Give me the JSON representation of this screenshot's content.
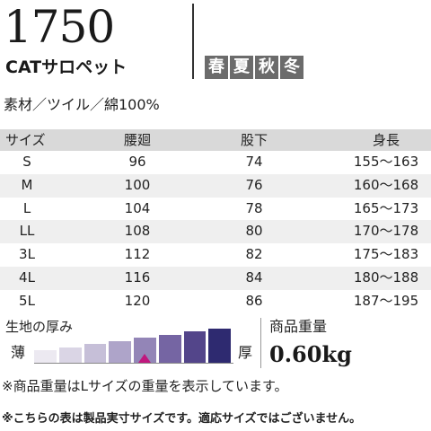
{
  "product": {
    "number": "1750",
    "name": "CATサロペット",
    "seasons": [
      "春",
      "夏",
      "秋",
      "冬"
    ]
  },
  "material": "素材／ツイル／綿100%",
  "size_table": {
    "headers": [
      "サイズ",
      "腰廻",
      "股下",
      "身長"
    ],
    "rows": [
      [
        "S",
        "96",
        "74",
        "155〜163"
      ],
      [
        "M",
        "100",
        "76",
        "160〜168"
      ],
      [
        "L",
        "104",
        "78",
        "165〜173"
      ],
      [
        "LL",
        "108",
        "80",
        "170〜178"
      ],
      [
        "3L",
        "112",
        "82",
        "175〜183"
      ],
      [
        "4L",
        "116",
        "84",
        "180〜188"
      ],
      [
        "5L",
        "120",
        "86",
        "187〜195"
      ]
    ]
  },
  "thickness": {
    "title": "生地の厚み",
    "thin_label": "薄",
    "thick_label": "厚",
    "levels": 8,
    "selected_level": 5,
    "colors": [
      "#ece9f1",
      "#dad5e5",
      "#c6bfd8",
      "#aea4c9",
      "#9385b7",
      "#7565a3",
      "#53458a",
      "#2e2a70"
    ],
    "marker_color": "#c0187e"
  },
  "weight": {
    "title": "商品重量",
    "value": "0.60kg"
  },
  "footnotes": {
    "weight_note": "※商品重量はLサイズの重量を表示しています。",
    "size_note": "※こちらの表は製品実寸サイズです。適応サイズではございません。"
  }
}
